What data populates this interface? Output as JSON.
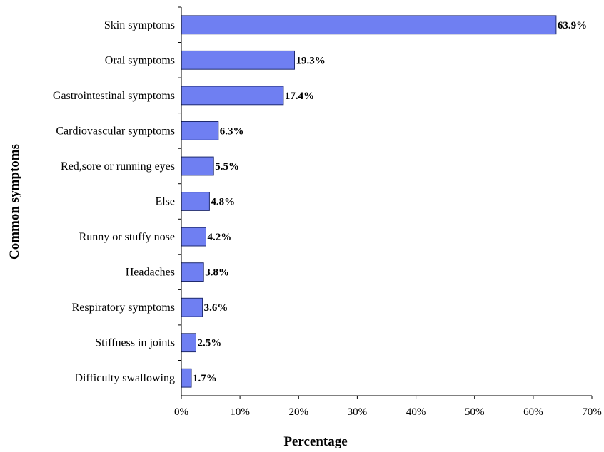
{
  "chart_data": {
    "type": "bar",
    "orientation": "horizontal",
    "title": "",
    "xlabel": "Percentage",
    "ylabel": "Common symptoms",
    "xlim": [
      0,
      70
    ],
    "x_ticks": [
      "0%",
      "10%",
      "20%",
      "30%",
      "40%",
      "50%",
      "60%",
      "70%"
    ],
    "grid": false,
    "legend": "none",
    "bar_color": "#6f7ff2",
    "bar_edge_color": "#1f2a6e",
    "categories": [
      "Skin symptoms",
      "Oral symptoms",
      "Gastrointestinal symptoms",
      "Cardiovascular symptoms",
      "Red,sore or running eyes",
      "Else",
      "Runny or stuffy nose",
      "Headaches",
      "Respiratory symptoms",
      "Stiffness in joints",
      "Difficulty swallowing"
    ],
    "values": [
      63.9,
      19.3,
      17.4,
      6.3,
      5.5,
      4.8,
      4.2,
      3.8,
      3.6,
      2.5,
      1.7
    ],
    "data_labels": [
      "63.9%",
      "19.3%",
      "17.4%",
      "6.3%",
      "5.5%",
      "4.8%",
      "4.2%",
      "3.8%",
      "3.6%",
      "2.5%",
      "1.7%"
    ]
  }
}
